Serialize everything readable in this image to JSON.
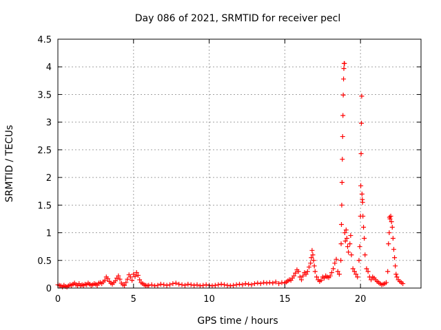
{
  "chart_data": {
    "type": "scatter",
    "title": "Day 086 of 2021, SRMTID for receiver pecl",
    "xlabel": "GPS time / hours",
    "ylabel": "SRMTID / TECUs",
    "xlim": [
      0,
      24
    ],
    "ylim": [
      0,
      4.5
    ],
    "xticks": [
      0,
      5,
      10,
      15,
      20
    ],
    "yticks": [
      0,
      0.5,
      1,
      1.5,
      2,
      2.5,
      3,
      3.5,
      4,
      4.5
    ],
    "xtick_labels": [
      "0",
      "5",
      "10",
      "15",
      "20"
    ],
    "ytick_labels": [
      "0",
      "0.5",
      "1",
      "1.5",
      "2",
      "2.5",
      "3",
      "3.5",
      "4",
      "4.5"
    ],
    "grid": true,
    "marker": "+",
    "series": [
      {
        "name": "SRMTID",
        "color": "#ff0000",
        "points": [
          [
            0.0,
            0.06
          ],
          [
            0.1,
            0.05
          ],
          [
            0.2,
            0.04
          ],
          [
            0.3,
            0.02
          ],
          [
            0.4,
            0.05
          ],
          [
            0.5,
            0.03
          ],
          [
            0.6,
            0.02
          ],
          [
            0.7,
            0.04
          ],
          [
            0.8,
            0.06
          ],
          [
            0.9,
            0.05
          ],
          [
            1.0,
            0.07
          ],
          [
            1.1,
            0.09
          ],
          [
            1.2,
            0.06
          ],
          [
            1.3,
            0.05
          ],
          [
            1.4,
            0.08
          ],
          [
            1.5,
            0.04
          ],
          [
            1.6,
            0.06
          ],
          [
            1.7,
            0.05
          ],
          [
            1.8,
            0.07
          ],
          [
            1.9,
            0.06
          ],
          [
            2.0,
            0.09
          ],
          [
            2.1,
            0.07
          ],
          [
            2.2,
            0.05
          ],
          [
            2.3,
            0.06
          ],
          [
            2.4,
            0.08
          ],
          [
            2.5,
            0.07
          ],
          [
            2.6,
            0.05
          ],
          [
            2.7,
            0.09
          ],
          [
            2.8,
            0.1
          ],
          [
            2.9,
            0.08
          ],
          [
            3.0,
            0.11
          ],
          [
            3.1,
            0.14
          ],
          [
            3.2,
            0.2
          ],
          [
            3.3,
            0.17
          ],
          [
            3.4,
            0.12
          ],
          [
            3.5,
            0.09
          ],
          [
            3.6,
            0.07
          ],
          [
            3.7,
            0.1
          ],
          [
            3.8,
            0.13
          ],
          [
            3.9,
            0.18
          ],
          [
            4.0,
            0.22
          ],
          [
            4.1,
            0.16
          ],
          [
            4.2,
            0.09
          ],
          [
            4.3,
            0.06
          ],
          [
            4.4,
            0.05
          ],
          [
            4.5,
            0.1
          ],
          [
            4.6,
            0.16
          ],
          [
            4.7,
            0.24
          ],
          [
            4.8,
            0.2
          ],
          [
            4.9,
            0.14
          ],
          [
            5.0,
            0.25
          ],
          [
            5.1,
            0.21
          ],
          [
            5.2,
            0.28
          ],
          [
            5.3,
            0.23
          ],
          [
            5.4,
            0.15
          ],
          [
            5.5,
            0.1
          ],
          [
            5.6,
            0.08
          ],
          [
            5.7,
            0.06
          ],
          [
            5.8,
            0.05
          ],
          [
            5.9,
            0.04
          ],
          [
            6.0,
            0.05
          ],
          [
            6.2,
            0.06
          ],
          [
            6.4,
            0.04
          ],
          [
            6.6,
            0.05
          ],
          [
            6.8,
            0.07
          ],
          [
            7.0,
            0.06
          ],
          [
            7.2,
            0.05
          ],
          [
            7.4,
            0.06
          ],
          [
            7.6,
            0.08
          ],
          [
            7.8,
            0.09
          ],
          [
            8.0,
            0.07
          ],
          [
            8.2,
            0.06
          ],
          [
            8.4,
            0.05
          ],
          [
            8.6,
            0.07
          ],
          [
            8.8,
            0.06
          ],
          [
            9.0,
            0.05
          ],
          [
            9.2,
            0.06
          ],
          [
            9.4,
            0.04
          ],
          [
            9.6,
            0.05
          ],
          [
            9.8,
            0.06
          ],
          [
            10.0,
            0.05
          ],
          [
            10.2,
            0.04
          ],
          [
            10.4,
            0.05
          ],
          [
            10.6,
            0.06
          ],
          [
            10.8,
            0.07
          ],
          [
            11.0,
            0.06
          ],
          [
            11.2,
            0.05
          ],
          [
            11.4,
            0.04
          ],
          [
            11.6,
            0.05
          ],
          [
            11.8,
            0.06
          ],
          [
            12.0,
            0.07
          ],
          [
            12.2,
            0.06
          ],
          [
            12.4,
            0.08
          ],
          [
            12.6,
            0.07
          ],
          [
            12.8,
            0.06
          ],
          [
            13.0,
            0.08
          ],
          [
            13.2,
            0.09
          ],
          [
            13.4,
            0.08
          ],
          [
            13.6,
            0.1
          ],
          [
            13.8,
            0.09
          ],
          [
            14.0,
            0.1
          ],
          [
            14.2,
            0.09
          ],
          [
            14.4,
            0.11
          ],
          [
            14.6,
            0.08
          ],
          [
            14.8,
            0.1
          ],
          [
            15.0,
            0.09
          ],
          [
            15.1,
            0.11
          ],
          [
            15.2,
            0.13
          ],
          [
            15.3,
            0.15
          ],
          [
            15.4,
            0.14
          ],
          [
            15.5,
            0.18
          ],
          [
            15.6,
            0.22
          ],
          [
            15.7,
            0.27
          ],
          [
            15.8,
            0.33
          ],
          [
            15.9,
            0.3
          ],
          [
            16.0,
            0.2
          ],
          [
            16.1,
            0.15
          ],
          [
            16.2,
            0.22
          ],
          [
            16.3,
            0.28
          ],
          [
            16.4,
            0.25
          ],
          [
            16.5,
            0.3
          ],
          [
            16.6,
            0.38
          ],
          [
            16.7,
            0.45
          ],
          [
            16.75,
            0.55
          ],
          [
            16.8,
            0.68
          ],
          [
            16.85,
            0.6
          ],
          [
            16.9,
            0.5
          ],
          [
            16.95,
            0.4
          ],
          [
            17.0,
            0.3
          ],
          [
            17.1,
            0.2
          ],
          [
            17.2,
            0.15
          ],
          [
            17.3,
            0.12
          ],
          [
            17.4,
            0.14
          ],
          [
            17.5,
            0.2
          ],
          [
            17.6,
            0.18
          ],
          [
            17.7,
            0.22
          ],
          [
            17.8,
            0.2
          ],
          [
            17.9,
            0.19
          ],
          [
            18.0,
            0.22
          ],
          [
            18.1,
            0.28
          ],
          [
            18.2,
            0.35
          ],
          [
            18.3,
            0.45
          ],
          [
            18.4,
            0.52
          ],
          [
            18.5,
            0.3
          ],
          [
            18.6,
            0.25
          ],
          [
            18.7,
            0.5
          ],
          [
            18.72,
            0.8
          ],
          [
            18.74,
            1.15
          ],
          [
            18.76,
            1.5
          ],
          [
            18.78,
            1.91
          ],
          [
            18.8,
            2.33
          ],
          [
            18.82,
            2.74
          ],
          [
            18.84,
            3.12
          ],
          [
            18.86,
            3.49
          ],
          [
            18.88,
            3.78
          ],
          [
            18.9,
            3.97
          ],
          [
            18.92,
            4.06
          ],
          [
            18.94,
            4.06
          ],
          [
            18.96,
            1.0
          ],
          [
            19.0,
            0.85
          ],
          [
            19.05,
            1.05
          ],
          [
            19.1,
            0.9
          ],
          [
            19.15,
            0.75
          ],
          [
            19.2,
            0.65
          ],
          [
            19.3,
            0.8
          ],
          [
            19.35,
            0.95
          ],
          [
            19.4,
            0.6
          ],
          [
            19.5,
            0.35
          ],
          [
            19.6,
            0.3
          ],
          [
            19.7,
            0.25
          ],
          [
            19.8,
            0.2
          ],
          [
            19.9,
            0.5
          ],
          [
            19.95,
            0.75
          ],
          [
            20.0,
            1.3
          ],
          [
            20.02,
            1.85
          ],
          [
            20.04,
            2.43
          ],
          [
            20.06,
            2.98
          ],
          [
            20.08,
            3.47
          ],
          [
            20.1,
            1.7
          ],
          [
            20.12,
            1.6
          ],
          [
            20.14,
            1.55
          ],
          [
            20.16,
            1.3
          ],
          [
            20.2,
            1.1
          ],
          [
            20.25,
            0.9
          ],
          [
            20.3,
            0.6
          ],
          [
            20.4,
            0.35
          ],
          [
            20.5,
            0.3
          ],
          [
            20.6,
            0.2
          ],
          [
            20.7,
            0.15
          ],
          [
            20.8,
            0.2
          ],
          [
            20.9,
            0.18
          ],
          [
            21.0,
            0.15
          ],
          [
            21.1,
            0.12
          ],
          [
            21.2,
            0.1
          ],
          [
            21.3,
            0.08
          ],
          [
            21.4,
            0.06
          ],
          [
            21.5,
            0.07
          ],
          [
            21.6,
            0.08
          ],
          [
            21.7,
            0.1
          ],
          [
            21.8,
            0.3
          ],
          [
            21.85,
            0.8
          ],
          [
            21.9,
            1.0
          ],
          [
            21.92,
            1.28
          ],
          [
            21.95,
            1.25
          ],
          [
            22.0,
            1.3
          ],
          [
            22.05,
            1.2
          ],
          [
            22.1,
            1.1
          ],
          [
            22.15,
            0.9
          ],
          [
            22.2,
            0.7
          ],
          [
            22.25,
            0.55
          ],
          [
            22.3,
            0.4
          ],
          [
            22.35,
            0.25
          ],
          [
            22.4,
            0.2
          ],
          [
            22.5,
            0.15
          ],
          [
            22.6,
            0.12
          ],
          [
            22.7,
            0.1
          ],
          [
            22.8,
            0.08
          ]
        ]
      }
    ]
  }
}
